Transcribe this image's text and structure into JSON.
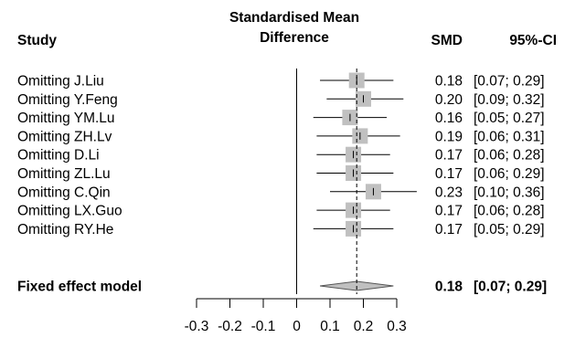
{
  "chart_data": {
    "type": "forest",
    "header": {
      "study": "Study",
      "effect_line1": "Standardised Mean",
      "effect_line2": "Difference",
      "estimate": "SMD",
      "ci": "95%-CI"
    },
    "studies": [
      {
        "label": "Omitting J.Liu",
        "smd": 0.18,
        "lower": 0.07,
        "upper": 0.29,
        "smd_text": "0.18",
        "ci_text": "[0.07; 0.29]"
      },
      {
        "label": "Omitting Y.Feng",
        "smd": 0.2,
        "lower": 0.09,
        "upper": 0.32,
        "smd_text": "0.20",
        "ci_text": "[0.09; 0.32]"
      },
      {
        "label": "Omitting YM.Lu",
        "smd": 0.16,
        "lower": 0.05,
        "upper": 0.27,
        "smd_text": "0.16",
        "ci_text": "[0.05; 0.27]"
      },
      {
        "label": "Omitting ZH.Lv",
        "smd": 0.19,
        "lower": 0.06,
        "upper": 0.31,
        "smd_text": "0.19",
        "ci_text": "[0.06; 0.31]"
      },
      {
        "label": "Omitting D.Li",
        "smd": 0.17,
        "lower": 0.06,
        "upper": 0.28,
        "smd_text": "0.17",
        "ci_text": "[0.06; 0.28]"
      },
      {
        "label": "Omitting ZL.Lu",
        "smd": 0.17,
        "lower": 0.06,
        "upper": 0.29,
        "smd_text": "0.17",
        "ci_text": "[0.06; 0.29]"
      },
      {
        "label": "Omitting C.Qin",
        "smd": 0.23,
        "lower": 0.1,
        "upper": 0.36,
        "smd_text": "0.23",
        "ci_text": "[0.10; 0.36]"
      },
      {
        "label": "Omitting LX.Guo",
        "smd": 0.17,
        "lower": 0.06,
        "upper": 0.28,
        "smd_text": "0.17",
        "ci_text": "[0.06; 0.28]"
      },
      {
        "label": "Omitting RY.He",
        "smd": 0.17,
        "lower": 0.05,
        "upper": 0.29,
        "smd_text": "0.17",
        "ci_text": "[0.05; 0.29]"
      }
    ],
    "pooled": {
      "label": "Fixed effect model",
      "smd": 0.18,
      "lower": 0.07,
      "upper": 0.29,
      "smd_text": "0.18",
      "ci_text": "[0.07; 0.29]"
    },
    "x_ticks": [
      -0.3,
      -0.2,
      -0.1,
      0,
      0.1,
      0.2,
      0.3
    ],
    "x_tick_labels": [
      "-0.3",
      "-0.2",
      "-0.1",
      "0",
      "0.1",
      "0.2",
      "0.3"
    ],
    "xlim": [
      -0.3,
      0.3
    ],
    "null_line": 0,
    "grid": false,
    "colors": {
      "square": "#c0c0c0",
      "diamond": "#c0c0c0",
      "line": "#000000",
      "pooled_ref": "#000000"
    }
  }
}
